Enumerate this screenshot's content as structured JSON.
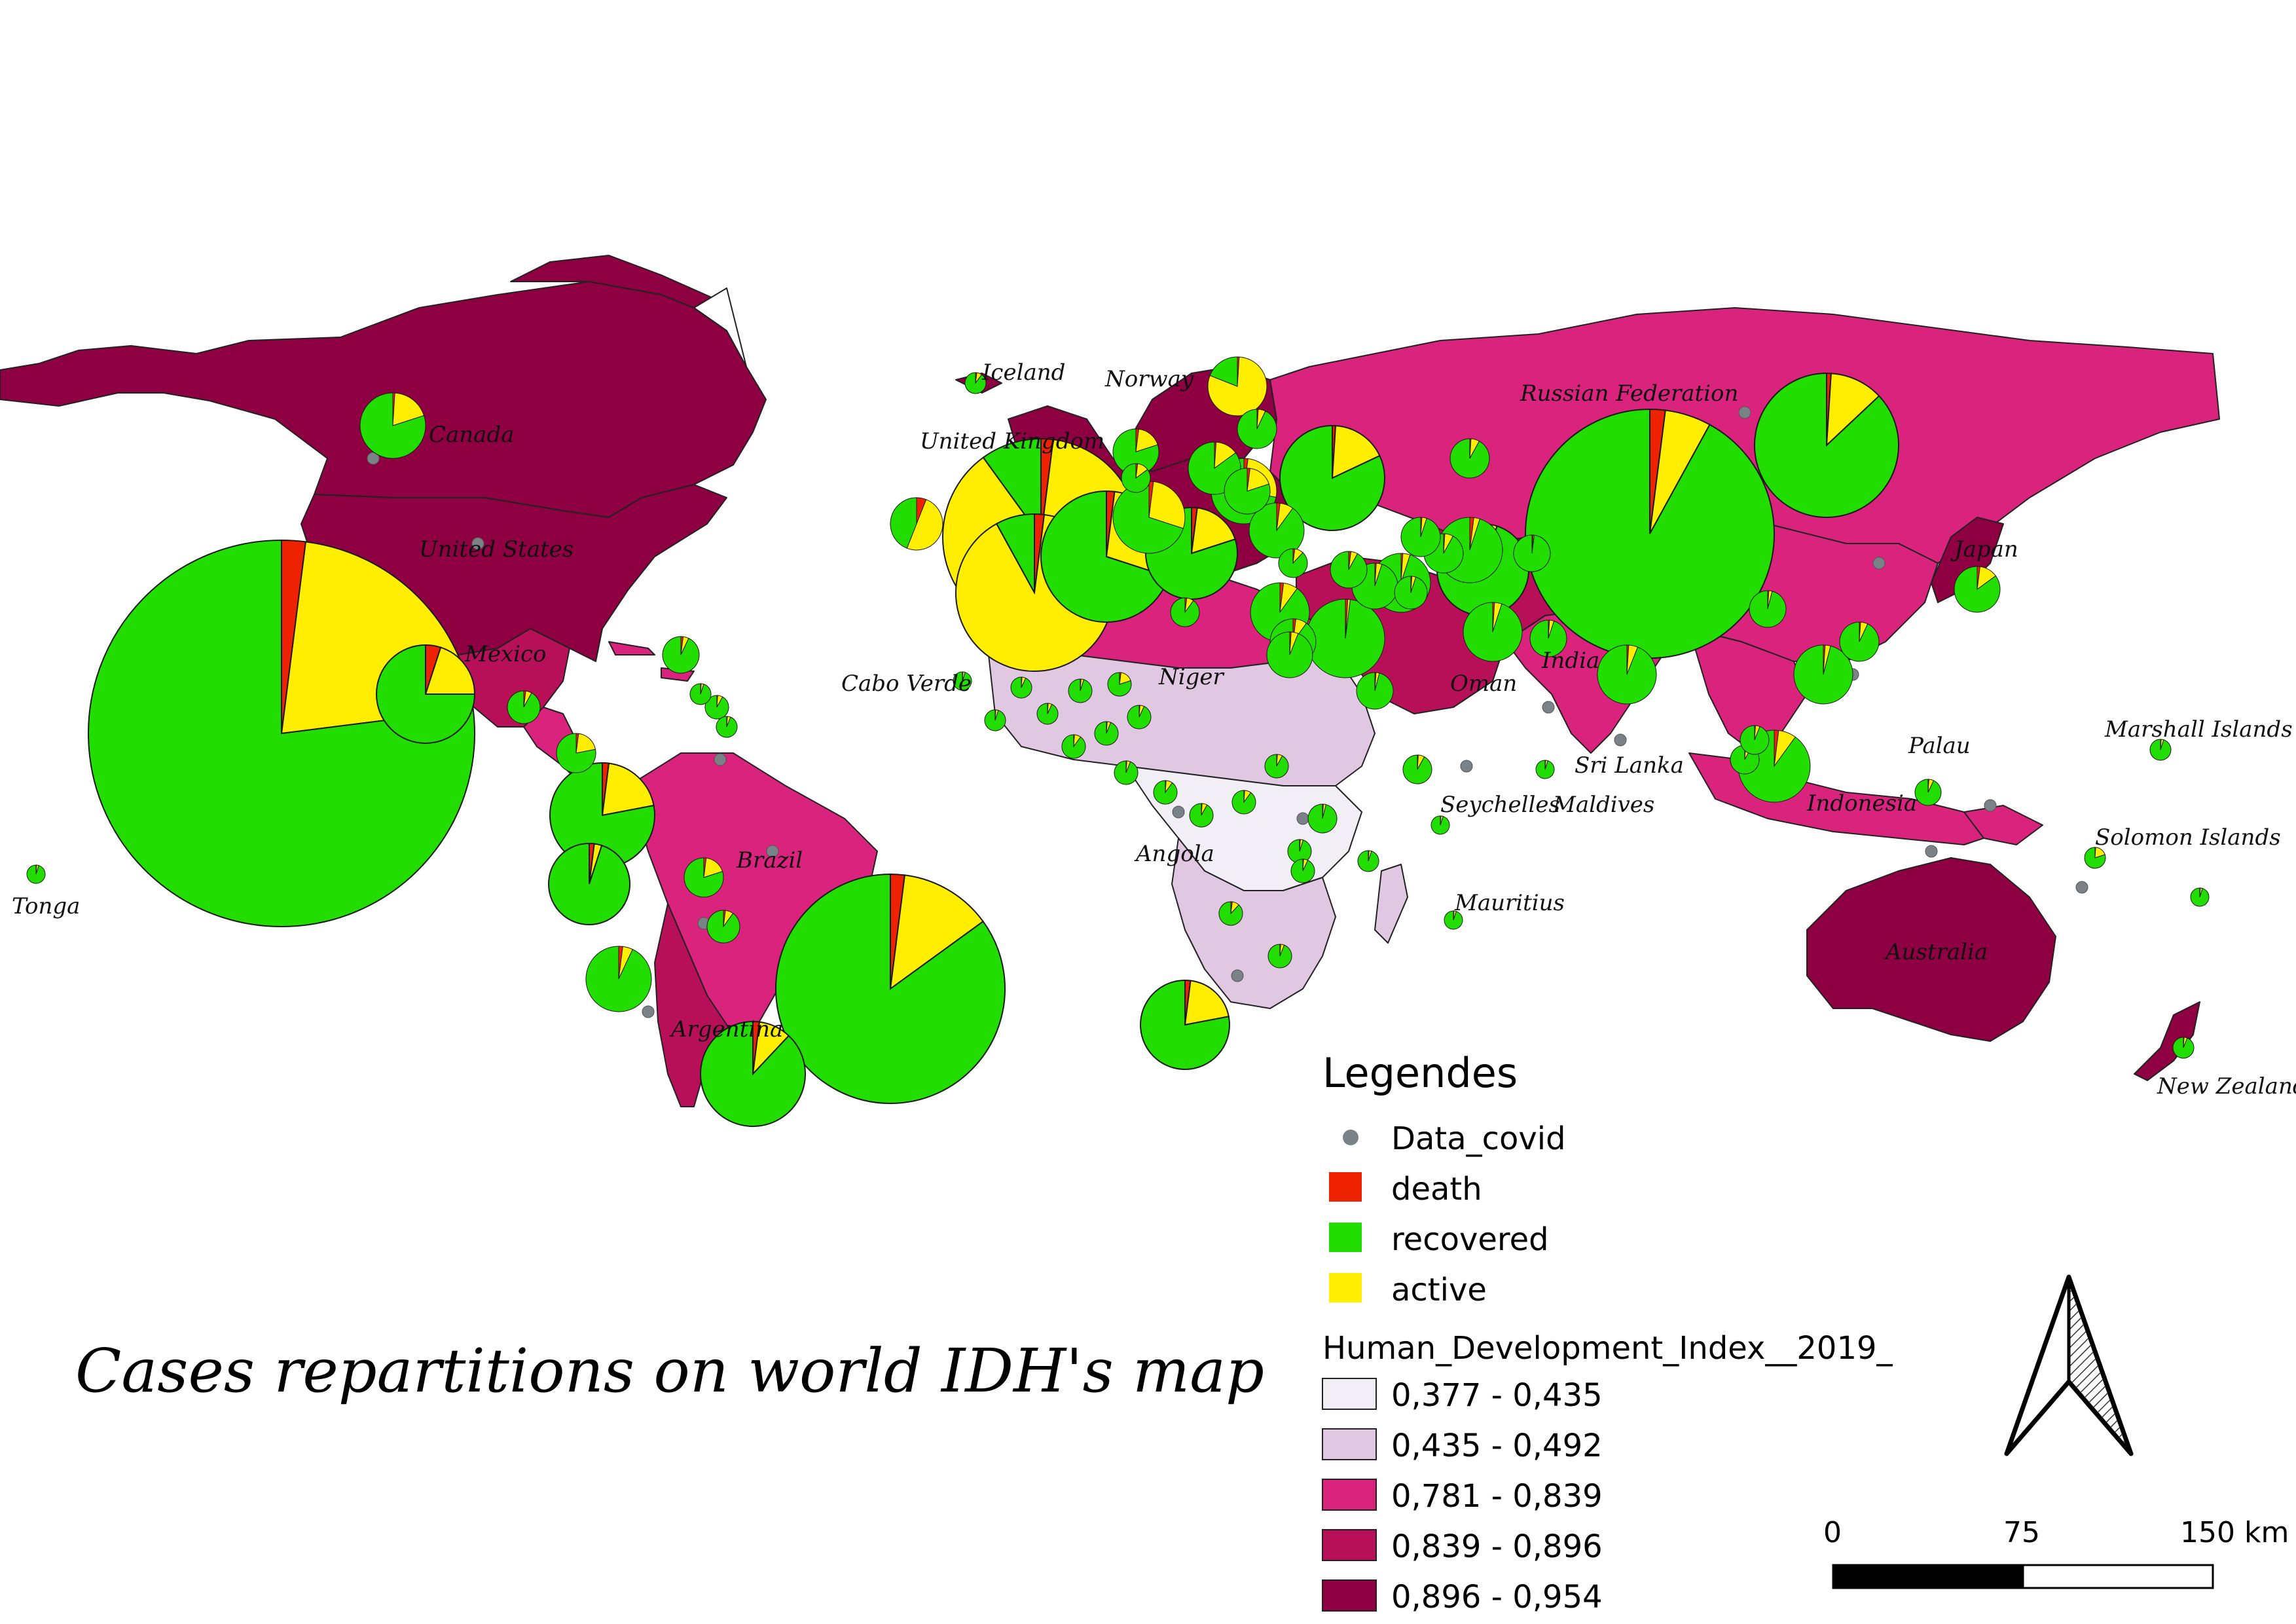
{
  "title": "Cases repartitions on world  IDH's map",
  "legend": {
    "heading": "Legendes",
    "point_layer": "Data_covid",
    "pie_categories": [
      {
        "label": "death",
        "color": "#ee2200"
      },
      {
        "label": "recovered",
        "color": "#22dd00"
      },
      {
        "label": "active",
        "color": "#ffee00"
      }
    ],
    "hdi_title": "Human_Development_Index__2019_",
    "hdi_classes": [
      {
        "label": "0,377 - 0,435",
        "color": "#f2eef5"
      },
      {
        "label": "0,435 - 0,492",
        "color": "#e0c8e2"
      },
      {
        "label": "0,781 - 0,839",
        "color": "#d9237c"
      },
      {
        "label": "0,839 - 0,896",
        "color": "#b71059"
      },
      {
        "label": "0,896 - 0,954",
        "color": "#8f0042"
      }
    ]
  },
  "scale_bar": {
    "ticks": [
      "0",
      "75",
      "150 km"
    ]
  },
  "north_arrow": "north-arrow-icon",
  "country_labels": [
    "Iceland",
    "Norway",
    "Russian Federation",
    "Canada",
    "United Kingdom",
    "United States",
    "Japan",
    "Mexico",
    "Cabo Verde",
    "Niger",
    "Oman",
    "India",
    "Palau",
    "Marshall Islands",
    "Sri Lanka",
    "Seychelles",
    "Maldives",
    "Indonesia",
    "Solomon Islands",
    "Brazil",
    "Angola",
    "Tonga",
    "Mauritius",
    "Argentina",
    "Australia",
    "New Zealand"
  ]
}
